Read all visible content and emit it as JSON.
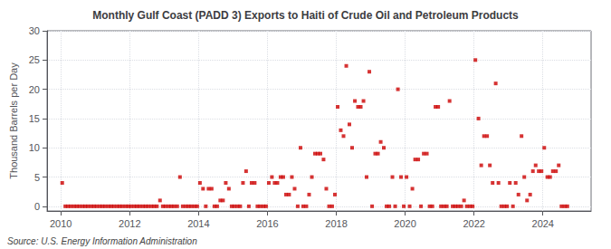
{
  "chart_data": {
    "type": "scatter",
    "title": "Monthly Gulf Coast (PADD 3) Exports to Haiti of Crude Oil and Petroleum Products",
    "ylabel": "Thousand Barrels per Day",
    "annotations": [
      "Source: U.S. Energy Information Administration"
    ],
    "color": "#cc0000",
    "marker": "square",
    "grid": true,
    "xlim": [
      2009.6,
      2025.4
    ],
    "xticks": [
      2010,
      2012,
      2014,
      2016,
      2018,
      2020,
      2022,
      2024
    ],
    "ylim": [
      -0.8,
      30
    ],
    "yticks": [
      0,
      5,
      10,
      15,
      20,
      25,
      30
    ],
    "x": [
      2010.04,
      2010.13,
      2010.21,
      2010.29,
      2010.38,
      2010.46,
      2010.54,
      2010.63,
      2010.71,
      2010.79,
      2010.88,
      2010.96,
      2011.04,
      2011.13,
      2011.21,
      2011.29,
      2011.38,
      2011.46,
      2011.54,
      2011.63,
      2011.71,
      2011.79,
      2011.88,
      2011.96,
      2012.04,
      2012.13,
      2012.21,
      2012.29,
      2012.38,
      2012.46,
      2012.54,
      2012.63,
      2012.71,
      2012.79,
      2012.88,
      2012.96,
      2013.04,
      2013.13,
      2013.21,
      2013.29,
      2013.38,
      2013.46,
      2013.54,
      2013.63,
      2013.71,
      2013.79,
      2013.88,
      2013.96,
      2014.04,
      2014.13,
      2014.21,
      2014.29,
      2014.38,
      2014.46,
      2014.54,
      2014.63,
      2014.71,
      2014.79,
      2014.88,
      2014.96,
      2015.04,
      2015.13,
      2015.21,
      2015.29,
      2015.38,
      2015.46,
      2015.54,
      2015.63,
      2015.71,
      2015.79,
      2015.88,
      2015.96,
      2016.04,
      2016.13,
      2016.21,
      2016.29,
      2016.38,
      2016.46,
      2016.54,
      2016.63,
      2016.71,
      2016.79,
      2016.88,
      2016.96,
      2017.04,
      2017.13,
      2017.21,
      2017.29,
      2017.38,
      2017.46,
      2017.54,
      2017.63,
      2017.71,
      2017.79,
      2017.88,
      2017.96,
      2018.04,
      2018.13,
      2018.21,
      2018.29,
      2018.38,
      2018.46,
      2018.54,
      2018.63,
      2018.71,
      2018.79,
      2018.88,
      2018.96,
      2019.04,
      2019.13,
      2019.21,
      2019.29,
      2019.38,
      2019.46,
      2019.54,
      2019.63,
      2019.71,
      2019.79,
      2019.88,
      2019.96,
      2020.04,
      2020.13,
      2020.21,
      2020.29,
      2020.38,
      2020.46,
      2020.54,
      2020.63,
      2020.71,
      2020.79,
      2020.88,
      2020.96,
      2021.04,
      2021.13,
      2021.21,
      2021.29,
      2021.38,
      2021.46,
      2021.54,
      2021.63,
      2021.71,
      2021.79,
      2021.88,
      2021.96,
      2022.04,
      2022.13,
      2022.21,
      2022.29,
      2022.38,
      2022.46,
      2022.54,
      2022.63,
      2022.71,
      2022.79,
      2022.88,
      2022.96,
      2023.04,
      2023.13,
      2023.21,
      2023.29,
      2023.38,
      2023.46,
      2023.54,
      2023.63,
      2023.71,
      2023.79,
      2023.88,
      2023.96,
      2024.04,
      2024.13,
      2024.21,
      2024.29,
      2024.38,
      2024.46,
      2024.54,
      2024.63,
      2024.71
    ],
    "values": [
      4.0,
      0.0,
      0.0,
      0.0,
      0.0,
      0.0,
      0.0,
      0.0,
      0.0,
      0.0,
      0.0,
      0.0,
      0.0,
      0.0,
      0.0,
      0.0,
      0.0,
      0.0,
      0.0,
      0.0,
      0.0,
      0.0,
      0.0,
      0.0,
      0.0,
      0.0,
      0.0,
      0.0,
      0.0,
      0.0,
      0.0,
      0.0,
      0.0,
      0.0,
      1.0,
      0.0,
      0.0,
      0.0,
      0.0,
      0.0,
      0.0,
      5.0,
      0.0,
      0.0,
      0.0,
      0.0,
      0.0,
      0.0,
      4.0,
      3.0,
      0.0,
      3.0,
      3.0,
      0.0,
      0.0,
      1.0,
      1.0,
      4.0,
      3.0,
      0.0,
      0.0,
      0.0,
      0.0,
      4.0,
      6.0,
      0.0,
      4.0,
      4.0,
      0.0,
      0.0,
      0.0,
      0.0,
      4.0,
      5.0,
      4.0,
      4.0,
      5.0,
      5.0,
      2.0,
      2.0,
      5.0,
      3.0,
      0.0,
      10.0,
      0.0,
      0.0,
      2.0,
      5.0,
      9.0,
      9.0,
      9.0,
      8.0,
      3.0,
      0.0,
      0.0,
      2.0,
      17.0,
      13.0,
      12.0,
      24.0,
      14.0,
      10.0,
      18.0,
      17.0,
      17.0,
      18.0,
      5.0,
      23.0,
      0.0,
      9.0,
      9.0,
      11.0,
      10.0,
      0.0,
      0.0,
      5.0,
      0.0,
      20.0,
      5.0,
      0.0,
      5.0,
      0.0,
      3.0,
      8.0,
      8.0,
      0.0,
      9.0,
      9.0,
      0.0,
      0.0,
      17.0,
      17.0,
      0.0,
      0.0,
      0.0,
      18.0,
      0.0,
      0.0,
      0.0,
      0.0,
      1.0,
      0.0,
      0.0,
      0.0,
      25.0,
      15.0,
      7.0,
      12.0,
      12.0,
      7.0,
      4.0,
      21.0,
      4.0,
      0.0,
      0.0,
      0.0,
      4.0,
      0.0,
      4.0,
      2.0,
      12.0,
      5.0,
      1.0,
      2.0,
      6.0,
      7.0,
      6.0,
      6.0,
      10.0,
      5.0,
      5.0,
      6.0,
      6.0,
      7.0,
      0.0,
      0.0,
      0.0
    ]
  }
}
